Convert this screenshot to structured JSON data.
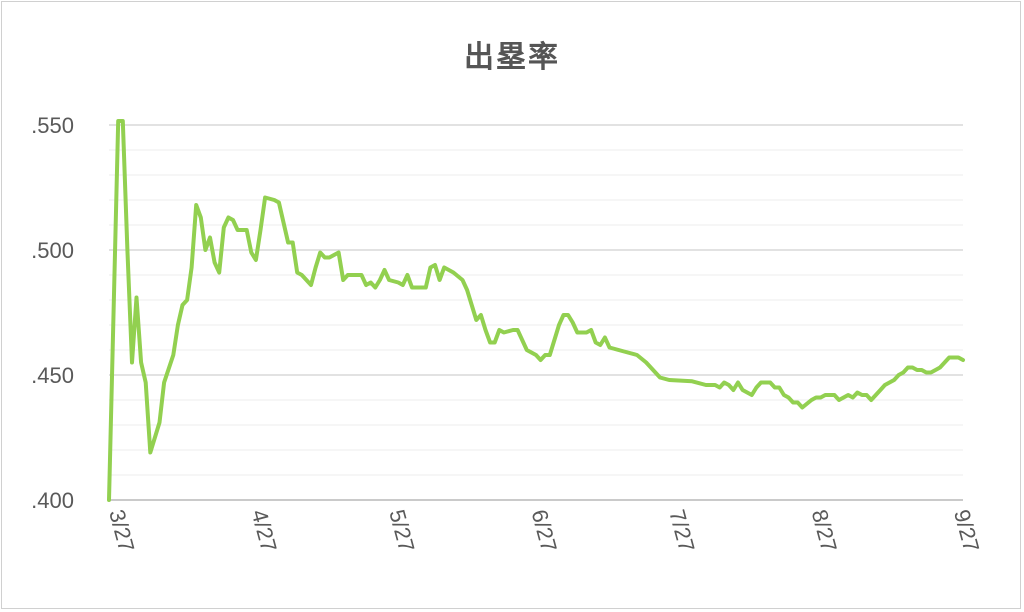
{
  "chart_data": {
    "type": "line",
    "title": "出塁率",
    "xlabel": "",
    "ylabel": "",
    "x_ticks": [
      "3/27",
      "4/27",
      "5/27",
      "6/27",
      "7/27",
      "8/27",
      "9/27"
    ],
    "y_ticks": [
      ".550",
      ".500",
      ".450",
      ".400"
    ],
    "ylim": [
      0.4,
      0.55
    ],
    "minor_grid_step": 0.01,
    "line_color": "#92d050",
    "series": [
      {
        "values": [
          [
            0,
            0.4
          ],
          [
            2,
            0.552
          ],
          [
            3,
            0.552
          ],
          [
            4,
            0.5
          ],
          [
            5,
            0.455
          ],
          [
            6,
            0.481
          ],
          [
            7,
            0.455
          ],
          [
            8,
            0.447
          ],
          [
            9,
            0.419
          ],
          [
            11,
            0.431
          ],
          [
            12,
            0.447
          ],
          [
            14,
            0.458
          ],
          [
            15,
            0.47
          ],
          [
            16,
            0.478
          ],
          [
            17,
            0.48
          ],
          [
            18,
            0.493
          ],
          [
            19,
            0.518
          ],
          [
            20,
            0.513
          ],
          [
            21,
            0.5
          ],
          [
            22,
            0.505
          ],
          [
            23,
            0.495
          ],
          [
            24,
            0.491
          ],
          [
            25,
            0.509
          ],
          [
            26,
            0.513
          ],
          [
            27,
            0.512
          ],
          [
            28,
            0.508
          ],
          [
            30,
            0.508
          ],
          [
            31,
            0.499
          ],
          [
            32,
            0.496
          ],
          [
            33,
            0.508
          ],
          [
            34,
            0.521
          ],
          [
            36,
            0.52
          ],
          [
            37,
            0.519
          ],
          [
            39,
            0.503
          ],
          [
            40,
            0.503
          ],
          [
            41,
            0.491
          ],
          [
            42,
            0.49
          ],
          [
            44,
            0.486
          ],
          [
            45,
            0.493
          ],
          [
            46,
            0.499
          ],
          [
            47,
            0.497
          ],
          [
            48,
            0.497
          ],
          [
            50,
            0.499
          ],
          [
            51,
            0.488
          ],
          [
            52,
            0.49
          ],
          [
            54,
            0.49
          ],
          [
            55,
            0.49
          ],
          [
            56,
            0.486
          ],
          [
            57,
            0.487
          ],
          [
            58,
            0.485
          ],
          [
            59,
            0.488
          ],
          [
            60,
            0.492
          ],
          [
            61,
            0.488
          ],
          [
            63,
            0.487
          ],
          [
            64,
            0.486
          ],
          [
            65,
            0.49
          ],
          [
            66,
            0.485
          ],
          [
            68,
            0.485
          ],
          [
            69,
            0.485
          ],
          [
            70,
            0.493
          ],
          [
            71,
            0.494
          ],
          [
            72,
            0.488
          ],
          [
            73,
            0.493
          ],
          [
            75,
            0.491
          ],
          [
            77,
            0.488
          ],
          [
            78,
            0.484
          ],
          [
            79,
            0.478
          ],
          [
            80,
            0.472
          ],
          [
            81,
            0.474
          ],
          [
            82,
            0.468
          ],
          [
            83,
            0.463
          ],
          [
            84,
            0.463
          ],
          [
            85,
            0.468
          ],
          [
            86,
            0.467
          ],
          [
            88,
            0.468
          ],
          [
            89,
            0.468
          ],
          [
            90,
            0.464
          ],
          [
            91,
            0.46
          ],
          [
            93,
            0.458
          ],
          [
            94,
            0.456
          ],
          [
            95,
            0.458
          ],
          [
            96,
            0.458
          ],
          [
            97,
            0.464
          ],
          [
            98,
            0.47
          ],
          [
            99,
            0.474
          ],
          [
            100,
            0.474
          ],
          [
            101,
            0.471
          ],
          [
            102,
            0.467
          ],
          [
            104,
            0.467
          ],
          [
            105,
            0.468
          ],
          [
            106,
            0.463
          ],
          [
            107,
            0.462
          ],
          [
            108,
            0.465
          ],
          [
            109,
            0.461
          ],
          [
            111,
            0.46
          ],
          [
            113,
            0.459
          ],
          [
            115,
            0.458
          ],
          [
            117,
            0.455
          ],
          [
            118,
            0.453
          ],
          [
            120,
            0.449
          ],
          [
            122,
            0.448
          ],
          [
            127,
            0.4475
          ],
          [
            130,
            0.446
          ],
          [
            132,
            0.446
          ],
          [
            133,
            0.445
          ],
          [
            134,
            0.447
          ],
          [
            135,
            0.446
          ],
          [
            136,
            0.444
          ],
          [
            137,
            0.447
          ],
          [
            138,
            0.444
          ],
          [
            140,
            0.442
          ],
          [
            141,
            0.445
          ],
          [
            142,
            0.447
          ],
          [
            144,
            0.447
          ],
          [
            145,
            0.445
          ],
          [
            146,
            0.445
          ],
          [
            147,
            0.442
          ],
          [
            148,
            0.441
          ],
          [
            149,
            0.439
          ],
          [
            150,
            0.439
          ],
          [
            151,
            0.437
          ],
          [
            153,
            0.44
          ],
          [
            154,
            0.441
          ],
          [
            155,
            0.441
          ],
          [
            156,
            0.442
          ],
          [
            157,
            0.442
          ],
          [
            158,
            0.442
          ],
          [
            159,
            0.44
          ],
          [
            160,
            0.441
          ],
          [
            161,
            0.442
          ],
          [
            162,
            0.441
          ],
          [
            163,
            0.443
          ],
          [
            164,
            0.442
          ],
          [
            165,
            0.442
          ],
          [
            166,
            0.44
          ],
          [
            167,
            0.442
          ],
          [
            168,
            0.444
          ],
          [
            169,
            0.446
          ],
          [
            170,
            0.447
          ],
          [
            171,
            0.448
          ],
          [
            172,
            0.45
          ],
          [
            173,
            0.451
          ],
          [
            174,
            0.453
          ],
          [
            175,
            0.453
          ],
          [
            176,
            0.452
          ],
          [
            177,
            0.452
          ],
          [
            178,
            0.451
          ],
          [
            179,
            0.451
          ],
          [
            180,
            0.452
          ],
          [
            181,
            0.453
          ],
          [
            182,
            0.455
          ],
          [
            183,
            0.457
          ],
          [
            184,
            0.457
          ],
          [
            185,
            0.457
          ],
          [
            186,
            0.456
          ]
        ]
      }
    ],
    "grid": true,
    "legend": "none"
  }
}
